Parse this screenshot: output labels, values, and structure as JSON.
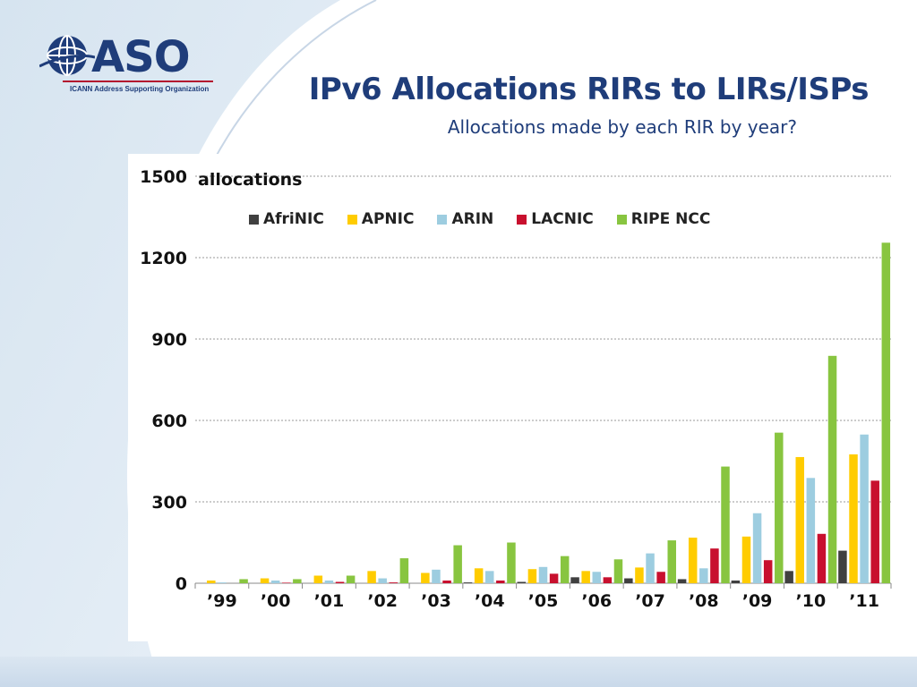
{
  "slide": {
    "title": "IPv6 Allocations RIRs to LIRs/ISPs",
    "subtitle": "Allocations made by each RIR by year?"
  },
  "logo": {
    "name": "ASO",
    "tagline": "ICANN Address Supporting Organization"
  },
  "colors": {
    "title": "#1f3d7a",
    "AfriNIC": "#404040",
    "APNIC": "#ffcc00",
    "ARIN": "#9dcde0",
    "LACNIC": "#c8102e",
    "RIPE NCC": "#88c540"
  },
  "chart_data": {
    "type": "bar",
    "ylabel": "allocations",
    "ylim": [
      0,
      1500
    ],
    "yticks": [
      0,
      300,
      600,
      900,
      1200,
      1500
    ],
    "grid": true,
    "legend_position": "top",
    "categories": [
      "’99",
      "’00",
      "’01",
      "’02",
      "’03",
      "’04",
      "’05",
      "’06",
      "’07",
      "’08",
      "’09",
      "’10",
      "’11"
    ],
    "series": [
      {
        "name": "AfriNIC",
        "values": [
          0,
          0,
          0,
          0,
          0,
          3,
          5,
          22,
          18,
          15,
          10,
          45,
          120
        ]
      },
      {
        "name": "APNIC",
        "values": [
          10,
          18,
          28,
          45,
          38,
          55,
          52,
          45,
          58,
          168,
          172,
          465,
          475
        ]
      },
      {
        "name": "ARIN",
        "values": [
          3,
          10,
          10,
          18,
          50,
          45,
          60,
          42,
          110,
          55,
          258,
          388,
          548
        ]
      },
      {
        "name": "LACNIC",
        "values": [
          0,
          2,
          5,
          3,
          10,
          10,
          35,
          22,
          42,
          128,
          85,
          182,
          378
        ]
      },
      {
        "name": "RIPE NCC",
        "values": [
          15,
          15,
          28,
          92,
          140,
          150,
          100,
          88,
          158,
          430,
          555,
          838,
          1255
        ]
      }
    ]
  }
}
